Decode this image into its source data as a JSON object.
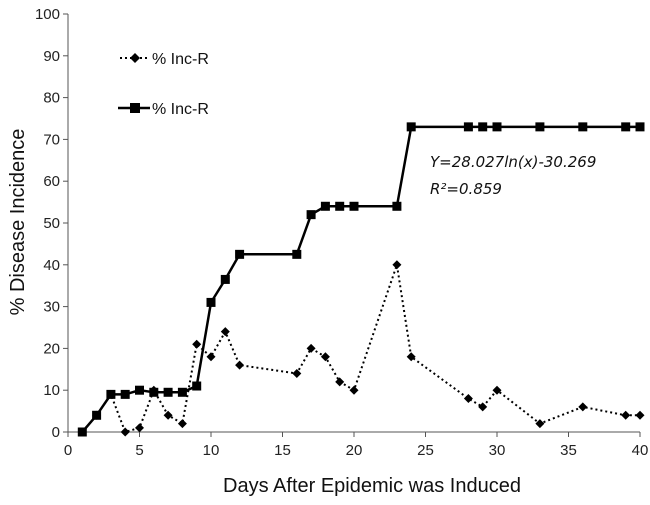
{
  "chart_data": {
    "type": "line",
    "xlabel": "Days After Epidemic was Induced",
    "ylabel": "% Disease Incidence",
    "xlim": [
      0,
      40
    ],
    "ylim": [
      0,
      100
    ],
    "xticks": [
      0,
      5,
      10,
      15,
      20,
      25,
      30,
      35,
      40
    ],
    "yticks": [
      0,
      10,
      20,
      30,
      40,
      50,
      60,
      70,
      80,
      90,
      100
    ],
    "grid": false,
    "legend_position": "top-left",
    "series": [
      {
        "name": "% Inc-R",
        "style": "dotted",
        "marker": "diamond",
        "points": [
          [
            1,
            0
          ],
          [
            2,
            4
          ],
          [
            3,
            9
          ],
          [
            4,
            0
          ],
          [
            5,
            1
          ],
          [
            6,
            10
          ],
          [
            7,
            4
          ],
          [
            8,
            2
          ],
          [
            9,
            21
          ],
          [
            10,
            18
          ],
          [
            11,
            24
          ],
          [
            12,
            16
          ],
          [
            16,
            14
          ],
          [
            17,
            20
          ],
          [
            18,
            18
          ],
          [
            19,
            12
          ],
          [
            20,
            10
          ],
          [
            23,
            40
          ],
          [
            24,
            18
          ],
          [
            28,
            8
          ],
          [
            29,
            6
          ],
          [
            30,
            10
          ],
          [
            33,
            2
          ],
          [
            36,
            6
          ],
          [
            39,
            4
          ],
          [
            40,
            4
          ]
        ]
      },
      {
        "name": "% Inc-R",
        "style": "solid",
        "marker": "square",
        "points": [
          [
            1,
            0
          ],
          [
            2,
            4
          ],
          [
            3,
            9
          ],
          [
            4,
            9
          ],
          [
            5,
            10
          ],
          [
            6,
            9.5
          ],
          [
            7,
            9.5
          ],
          [
            8,
            9.5
          ],
          [
            9,
            11
          ],
          [
            10,
            31
          ],
          [
            11,
            36.5
          ],
          [
            12,
            42.5
          ],
          [
            16,
            42.5
          ],
          [
            17,
            52
          ],
          [
            18,
            54
          ],
          [
            19,
            54
          ],
          [
            20,
            54
          ],
          [
            23,
            54
          ],
          [
            24,
            73
          ],
          [
            28,
            73
          ],
          [
            29,
            73
          ],
          [
            30,
            73
          ],
          [
            33,
            73
          ],
          [
            36,
            73
          ],
          [
            39,
            73
          ],
          [
            40,
            73
          ]
        ]
      }
    ],
    "annotations": [
      "Y=28.027ln(x)-30.269",
      "R²=0.859"
    ],
    "colors": {
      "line": "#000000",
      "axis": "#555555"
    }
  }
}
